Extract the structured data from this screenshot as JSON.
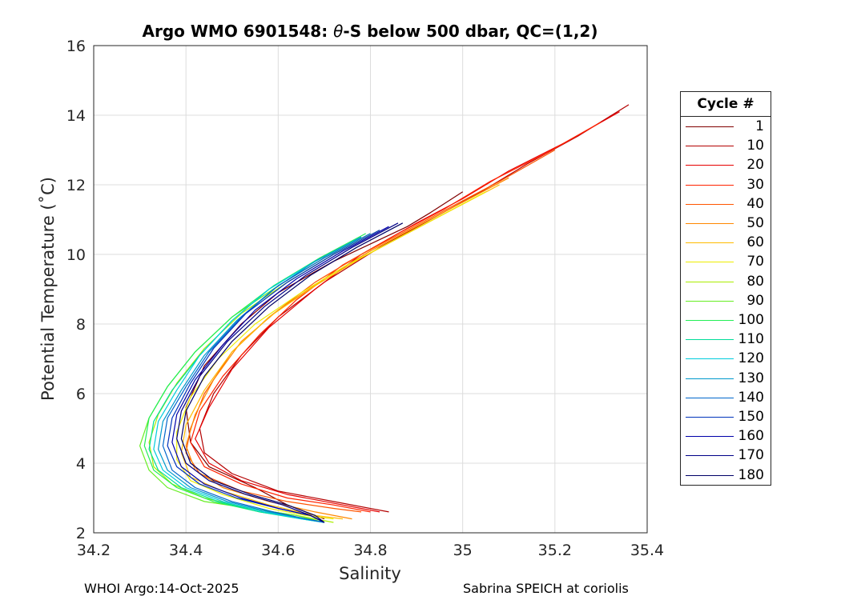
{
  "chart_data": {
    "type": "line",
    "title_prefix": "Argo WMO 6901548: ",
    "title_symbol": "θ",
    "title_suffix": "-S below 500 dbar,  QC=(1,2)",
    "xlabel": "Salinity",
    "ylabel": "Potential Temperature (˚C)",
    "xlim": [
      34.2,
      35.4
    ],
    "ylim": [
      2,
      16
    ],
    "xticks": [
      "34.2",
      "34.4",
      "34.6",
      "34.8",
      "35",
      "35.2",
      "35.4"
    ],
    "yticks": [
      "2",
      "4",
      "6",
      "8",
      "10",
      "12",
      "14",
      "16"
    ],
    "grid": true,
    "legend_title": "Cycle #",
    "legend_placement": "outside-right",
    "series": [
      {
        "name": "1",
        "color": "#800000",
        "salinity": [
          35.0,
          34.93,
          34.88,
          34.8,
          34.72,
          34.6,
          34.52,
          34.44,
          34.4,
          34.41,
          34.45,
          34.55,
          34.62,
          34.7
        ],
        "theta": [
          11.8,
          11.2,
          10.8,
          10.3,
          9.8,
          8.9,
          8.0,
          6.8,
          5.6,
          4.6,
          3.9,
          3.3,
          2.8,
          2.4
        ]
      },
      {
        "name": "10",
        "color": "#b30000",
        "salinity": [
          35.36,
          35.25,
          35.14,
          35.04,
          34.93,
          34.82,
          34.7,
          34.6,
          34.52,
          34.46,
          34.43,
          34.44,
          34.5,
          34.6,
          34.72,
          34.84
        ],
        "theta": [
          14.3,
          13.4,
          12.6,
          11.8,
          11.0,
          10.2,
          9.2,
          8.2,
          7.1,
          6.0,
          5.0,
          4.3,
          3.7,
          3.2,
          2.9,
          2.6
        ]
      },
      {
        "name": "20",
        "color": "#e60000",
        "salinity": [
          35.34,
          35.22,
          35.1,
          35.0,
          34.9,
          34.78,
          34.68,
          34.58,
          34.5,
          34.45,
          34.42,
          34.45,
          34.52,
          34.62,
          34.74,
          34.82
        ],
        "theta": [
          14.1,
          13.2,
          12.4,
          11.6,
          10.9,
          10.0,
          9.0,
          7.9,
          6.7,
          5.6,
          4.7,
          4.0,
          3.5,
          3.1,
          2.8,
          2.6
        ]
      },
      {
        "name": "30",
        "color": "#ff2200",
        "salinity": [
          35.3,
          35.18,
          35.06,
          34.96,
          34.86,
          34.74,
          34.64,
          34.56,
          34.48,
          34.43,
          34.41,
          34.44,
          34.52,
          34.62,
          34.72,
          34.8
        ],
        "theta": [
          13.8,
          12.9,
          12.1,
          11.3,
          10.6,
          9.7,
          8.7,
          7.7,
          6.5,
          5.5,
          4.6,
          3.9,
          3.4,
          3.0,
          2.8,
          2.6
        ]
      },
      {
        "name": "40",
        "color": "#ff5500",
        "salinity": [
          35.2,
          35.08,
          34.98,
          34.88,
          34.78,
          34.68,
          34.58,
          34.5,
          34.44,
          34.41,
          34.4,
          34.43,
          34.52,
          34.62,
          34.72,
          34.78
        ],
        "theta": [
          13.0,
          12.1,
          11.4,
          10.7,
          10.0,
          9.2,
          8.2,
          7.2,
          6.0,
          5.0,
          4.3,
          3.7,
          3.2,
          2.9,
          2.7,
          2.6
        ]
      },
      {
        "name": "50",
        "color": "#ff8800",
        "salinity": [
          35.1,
          35.0,
          34.9,
          34.8,
          34.7,
          34.6,
          34.52,
          34.46,
          34.42,
          34.4,
          34.42,
          34.48,
          34.58,
          34.68,
          34.76
        ],
        "theta": [
          12.2,
          11.5,
          10.8,
          10.1,
          9.3,
          8.4,
          7.5,
          6.4,
          5.4,
          4.5,
          3.8,
          3.3,
          2.9,
          2.6,
          2.4
        ]
      },
      {
        "name": "60",
        "color": "#ffbb00",
        "salinity": [
          35.08,
          34.98,
          34.88,
          34.78,
          34.68,
          34.58,
          34.5,
          34.44,
          34.4,
          34.39,
          34.41,
          34.48,
          34.58,
          34.68,
          34.74
        ],
        "theta": [
          12.0,
          11.3,
          10.6,
          9.9,
          9.1,
          8.2,
          7.2,
          6.1,
          5.1,
          4.3,
          3.6,
          3.2,
          2.8,
          2.5,
          2.4
        ]
      },
      {
        "name": "70",
        "color": "#eeee00",
        "salinity": [
          35.05,
          34.95,
          34.85,
          34.75,
          34.65,
          34.55,
          34.47,
          34.41,
          34.38,
          34.38,
          34.41,
          34.48,
          34.58,
          34.66,
          34.72
        ],
        "theta": [
          11.8,
          11.1,
          10.4,
          9.7,
          8.9,
          8.0,
          7.0,
          5.9,
          4.9,
          4.1,
          3.5,
          3.1,
          2.7,
          2.5,
          2.4
        ]
      },
      {
        "name": "80",
        "color": "#aaee00",
        "salinity": [
          34.82,
          34.72,
          34.62,
          34.52,
          34.44,
          34.38,
          34.34,
          34.32,
          34.33,
          34.37,
          34.44,
          34.54,
          34.64,
          34.72
        ],
        "theta": [
          10.7,
          10.0,
          9.2,
          8.3,
          7.3,
          6.3,
          5.4,
          4.6,
          3.9,
          3.4,
          3.0,
          2.7,
          2.5,
          2.3
        ]
      },
      {
        "name": "90",
        "color": "#66ee22",
        "salinity": [
          34.8,
          34.7,
          34.6,
          34.5,
          34.42,
          34.36,
          34.32,
          34.3,
          34.32,
          34.36,
          34.44,
          34.54,
          34.64,
          34.7
        ],
        "theta": [
          10.6,
          9.9,
          9.1,
          8.2,
          7.2,
          6.2,
          5.3,
          4.5,
          3.8,
          3.3,
          2.9,
          2.7,
          2.5,
          2.3
        ]
      },
      {
        "name": "100",
        "color": "#22ee55",
        "salinity": [
          34.79,
          34.69,
          34.59,
          34.5,
          34.42,
          34.36,
          34.32,
          34.31,
          34.33,
          34.38,
          34.46,
          34.56,
          34.66,
          34.7
        ],
        "theta": [
          10.6,
          9.9,
          9.1,
          8.2,
          7.2,
          6.2,
          5.3,
          4.5,
          3.8,
          3.3,
          2.9,
          2.6,
          2.4,
          2.3
        ]
      },
      {
        "name": "110",
        "color": "#00dd99",
        "salinity": [
          34.78,
          34.68,
          34.58,
          34.5,
          34.43,
          34.37,
          34.33,
          34.32,
          34.34,
          34.39,
          34.47,
          34.56,
          34.65,
          34.7
        ],
        "theta": [
          10.5,
          9.8,
          9.0,
          8.1,
          7.1,
          6.1,
          5.2,
          4.4,
          3.8,
          3.3,
          2.9,
          2.6,
          2.4,
          2.3
        ]
      },
      {
        "name": "120",
        "color": "#00ccdd",
        "salinity": [
          34.78,
          34.68,
          34.58,
          34.5,
          34.43,
          34.38,
          34.34,
          34.33,
          34.35,
          34.4,
          34.48,
          34.57,
          34.65,
          34.7
        ],
        "theta": [
          10.5,
          9.8,
          9.0,
          8.1,
          7.1,
          6.1,
          5.2,
          4.4,
          3.8,
          3.3,
          2.9,
          2.6,
          2.4,
          2.3
        ]
      },
      {
        "name": "130",
        "color": "#0099cc",
        "salinity": [
          34.78,
          34.68,
          34.59,
          34.51,
          34.44,
          34.39,
          34.35,
          34.34,
          34.36,
          34.41,
          34.49,
          34.58,
          34.66,
          34.7
        ],
        "theta": [
          10.5,
          9.8,
          9.0,
          8.1,
          7.1,
          6.1,
          5.2,
          4.4,
          3.8,
          3.3,
          2.9,
          2.6,
          2.4,
          2.3
        ]
      },
      {
        "name": "140",
        "color": "#0066cc",
        "salinity": [
          34.8,
          34.7,
          34.6,
          34.52,
          34.45,
          34.4,
          34.36,
          34.35,
          34.37,
          34.42,
          34.5,
          34.59,
          34.66,
          34.7
        ],
        "theta": [
          10.6,
          9.9,
          9.1,
          8.2,
          7.2,
          6.2,
          5.3,
          4.5,
          3.8,
          3.3,
          2.9,
          2.6,
          2.4,
          2.3
        ]
      },
      {
        "name": "150",
        "color": "#0033bb",
        "salinity": [
          34.82,
          34.72,
          34.62,
          34.53,
          34.46,
          34.41,
          34.37,
          34.36,
          34.38,
          34.43,
          34.51,
          34.6,
          34.67,
          34.7
        ],
        "theta": [
          10.7,
          10.0,
          9.2,
          8.3,
          7.3,
          6.3,
          5.3,
          4.5,
          3.9,
          3.4,
          3.0,
          2.7,
          2.5,
          2.3
        ]
      },
      {
        "name": "160",
        "color": "#0000aa",
        "salinity": [
          34.84,
          34.74,
          34.64,
          34.55,
          34.48,
          34.42,
          34.38,
          34.37,
          34.39,
          34.44,
          34.52,
          34.6,
          34.67,
          34.7
        ],
        "theta": [
          10.8,
          10.1,
          9.3,
          8.4,
          7.4,
          6.4,
          5.4,
          4.6,
          3.9,
          3.4,
          3.0,
          2.7,
          2.5,
          2.3
        ]
      },
      {
        "name": "170",
        "color": "#000088",
        "salinity": [
          34.86,
          34.76,
          34.66,
          34.57,
          34.49,
          34.43,
          34.39,
          34.38,
          34.4,
          34.45,
          34.53,
          34.61,
          34.67,
          34.7
        ],
        "theta": [
          10.9,
          10.2,
          9.4,
          8.5,
          7.5,
          6.5,
          5.5,
          4.7,
          4.0,
          3.5,
          3.1,
          2.8,
          2.5,
          2.3
        ]
      },
      {
        "name": "180",
        "color": "#000066",
        "salinity": [
          34.87,
          34.77,
          34.67,
          34.58,
          34.5,
          34.44,
          34.4,
          34.39,
          34.41,
          34.46,
          34.54,
          34.62,
          34.68,
          34.7
        ],
        "theta": [
          10.9,
          10.2,
          9.4,
          8.5,
          7.5,
          6.5,
          5.5,
          4.7,
          4.0,
          3.5,
          3.1,
          2.8,
          2.5,
          2.3
        ]
      }
    ]
  },
  "footer": {
    "left": "WHOI Argo:14-Oct-2025",
    "right": "Sabrina SPEICH at coriolis"
  }
}
